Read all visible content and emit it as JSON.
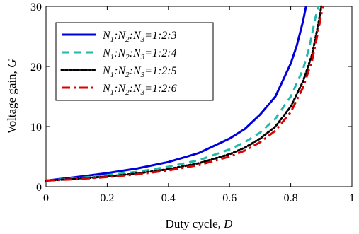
{
  "chart_data": {
    "type": "line",
    "xlabel": "Duty cycle,",
    "xlabel_var": "D",
    "ylabel": "Voltage gain,",
    "ylabel_var": "G",
    "xlim": [
      0,
      1
    ],
    "ylim": [
      0,
      30
    ],
    "xticks": [
      "0",
      "0.2",
      "0.4",
      "0.6",
      "0.8",
      "1"
    ],
    "yticks": [
      "0",
      "10",
      "20",
      "30"
    ],
    "grid": false,
    "legend_position": "top-left",
    "series": [
      {
        "name": "N1:N2:N3=1:2:3",
        "label_parts": [
          "N",
          "1",
          ":N",
          "2",
          ":N",
          "3",
          "=1:2:3"
        ],
        "color": "#0000dd",
        "style": "solid",
        "x": [
          0,
          0.1,
          0.2,
          0.3,
          0.4,
          0.5,
          0.6,
          0.65,
          0.7,
          0.75,
          0.8,
          0.82,
          0.84,
          0.85
        ],
        "y": [
          1.0,
          1.6,
          2.25,
          3.05,
          4.1,
          5.6,
          8.0,
          9.6,
          12.0,
          15.0,
          20.5,
          23.5,
          27.5,
          30
        ]
      },
      {
        "name": "N1:N2:N3=1:2:4",
        "label_parts": [
          "N",
          "1",
          ":N",
          "2",
          ":N",
          "3",
          "=1:2:4"
        ],
        "color": "#22b8aa",
        "style": "dashed",
        "x": [
          0,
          0.1,
          0.2,
          0.3,
          0.4,
          0.5,
          0.6,
          0.65,
          0.7,
          0.75,
          0.8,
          0.84,
          0.86,
          0.88,
          0.89
        ],
        "y": [
          1.0,
          1.4,
          1.9,
          2.5,
          3.3,
          4.4,
          6.2,
          7.4,
          9.0,
          11.3,
          15.0,
          19.5,
          23.0,
          28.0,
          30
        ]
      },
      {
        "name": "N1:N2:N3=1:2:5",
        "label_parts": [
          "N",
          "1",
          ":N",
          "2",
          ":N",
          "3",
          "=1:2:5"
        ],
        "color": "#000000",
        "style": "dotted",
        "x": [
          0,
          0.1,
          0.2,
          0.3,
          0.4,
          0.5,
          0.6,
          0.65,
          0.7,
          0.75,
          0.8,
          0.84,
          0.87,
          0.89,
          0.9
        ],
        "y": [
          1.0,
          1.3,
          1.7,
          2.2,
          2.9,
          3.9,
          5.4,
          6.5,
          8.0,
          10.0,
          13.3,
          17.5,
          22.0,
          27.0,
          30
        ]
      },
      {
        "name": "N1:N2:N3=1:2:6",
        "label_parts": [
          "N",
          "1",
          ":N",
          "2",
          ":N",
          "3",
          "=1:2:6"
        ],
        "color": "#dd0000",
        "style": "dashdot",
        "x": [
          0,
          0.1,
          0.2,
          0.3,
          0.4,
          0.5,
          0.6,
          0.65,
          0.7,
          0.75,
          0.8,
          0.84,
          0.87,
          0.89,
          0.905
        ],
        "y": [
          1.0,
          1.25,
          1.6,
          2.05,
          2.7,
          3.6,
          5.0,
          6.0,
          7.4,
          9.3,
          12.4,
          16.5,
          21.0,
          26.0,
          30
        ]
      }
    ]
  }
}
